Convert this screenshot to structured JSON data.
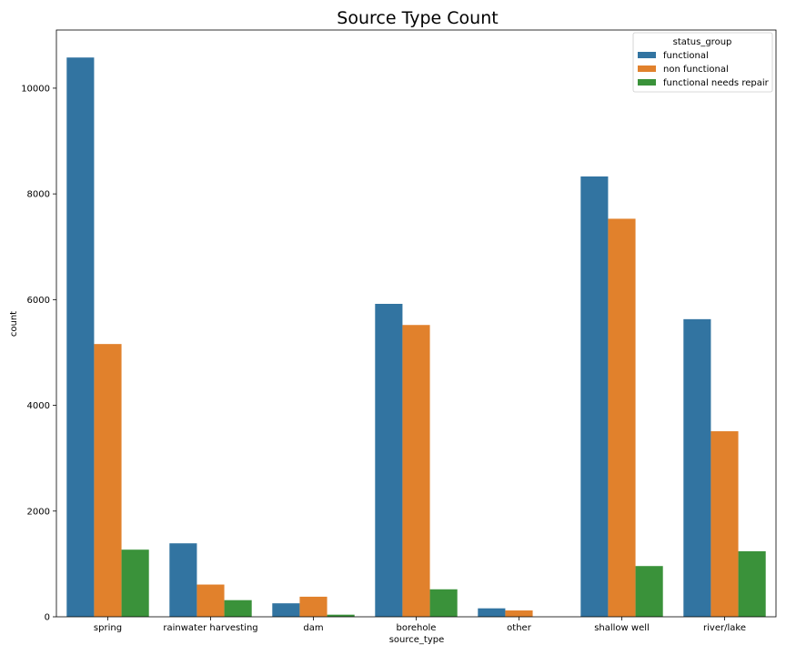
{
  "chart_data": {
    "type": "bar",
    "title": "Source Type Count",
    "xlabel": "source_type",
    "ylabel": "count",
    "categories": [
      "spring",
      "rainwater harvesting",
      "dam",
      "borehole",
      "other",
      "shallow well",
      "river/lake"
    ],
    "series": [
      {
        "name": "functional",
        "color": "#3274a1",
        "values": [
          10580,
          1390,
          255,
          5920,
          160,
          8330,
          5630
        ]
      },
      {
        "name": "non functional",
        "color": "#e1812c",
        "values": [
          5160,
          610,
          380,
          5520,
          120,
          7530,
          3510
        ]
      },
      {
        "name": "functional needs repair",
        "color": "#3a923a",
        "values": [
          1270,
          315,
          40,
          520,
          0,
          960,
          1240
        ]
      }
    ],
    "ylim": [
      0,
      11100
    ],
    "yticks": [
      0,
      2000,
      4000,
      6000,
      8000,
      10000
    ],
    "legend": {
      "title": "status_group",
      "placement": "top-right"
    },
    "grid": false
  }
}
